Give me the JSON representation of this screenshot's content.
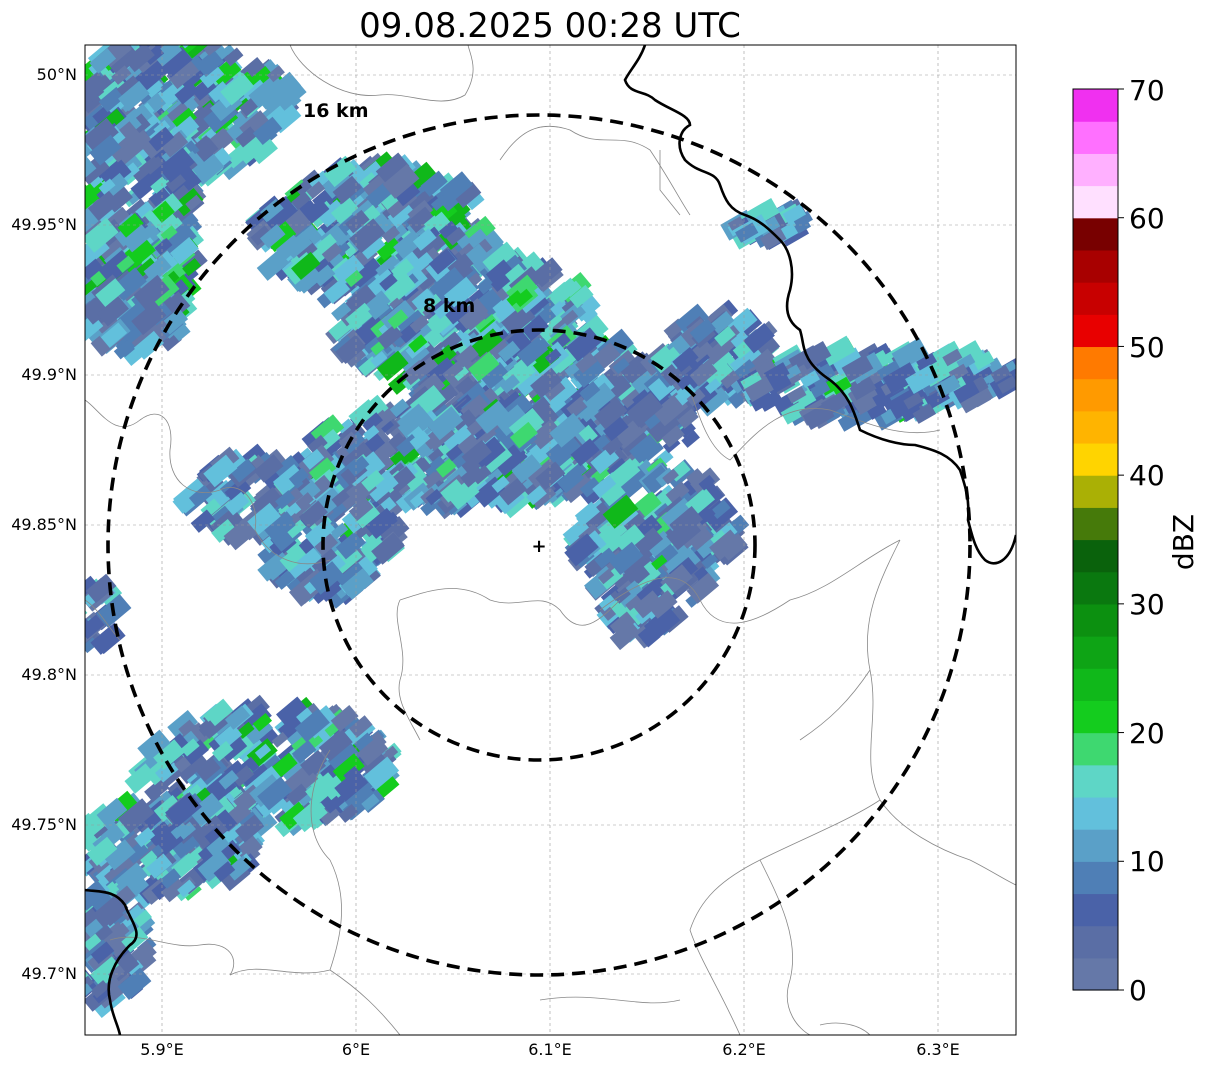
{
  "title": "09.08.2025 00:28 UTC",
  "map": {
    "lon_ticks": [
      "5.9°E",
      "6°E",
      "6.1°E",
      "6.2°E",
      "6.3°E"
    ],
    "lat_ticks": [
      "50°N",
      "49.95°N",
      "49.9°N",
      "49.85°N",
      "49.8°N",
      "49.75°N",
      "49.7°N"
    ],
    "gridlines": true,
    "radar_center_marker": "+",
    "range_rings": [
      {
        "label": "8 km",
        "radius_km": 8
      },
      {
        "label": "16 km",
        "radius_km": 16
      }
    ],
    "borders": "black country border, grey regional boundaries"
  },
  "colorbar": {
    "label": "dBZ",
    "min": 0,
    "max": 70,
    "ticks": [
      "0",
      "10",
      "20",
      "30",
      "40",
      "50",
      "60",
      "70"
    ],
    "colors": [
      "#6578a8",
      "#5a6ea5",
      "#4a62a8",
      "#4f7fb6",
      "#5aa0c8",
      "#62c0dc",
      "#5ed6c6",
      "#3ed870",
      "#14cc1e",
      "#10b81a",
      "#0ea415",
      "#0c9010",
      "#0a780f",
      "#0a620c",
      "#467a0a",
      "#aab005",
      "#ffd400",
      "#ffb400",
      "#ff9a00",
      "#ff7a00",
      "#e80000",
      "#c80000",
      "#a80000",
      "#780000",
      "#ffe0ff",
      "#ffb0ff",
      "#ff70ff",
      "#f030f0"
    ]
  }
}
